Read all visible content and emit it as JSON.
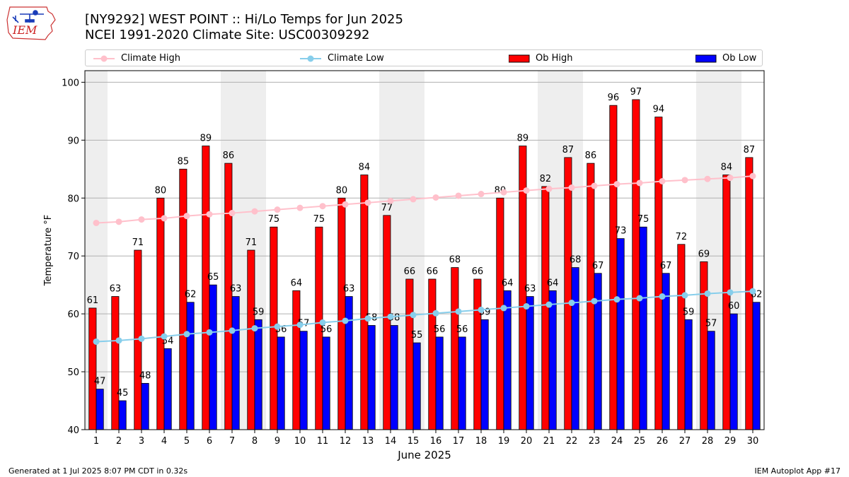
{
  "logo": {
    "text": "IEM"
  },
  "title": {
    "line1": "[NY9292] WEST POINT :: Hi/Lo Temps for Jun 2025",
    "line2": "NCEI 1991-2020 Climate Site: USC00309292"
  },
  "legend": [
    {
      "label": "Climate High",
      "kind": "line",
      "color": "#ffc0cb"
    },
    {
      "label": "Climate Low",
      "kind": "line",
      "color": "#87ceeb"
    },
    {
      "label": "Ob High",
      "kind": "bar",
      "color": "#ff0000"
    },
    {
      "label": "Ob Low",
      "kind": "bar",
      "color": "#0000ff"
    }
  ],
  "footer": {
    "left": "Generated at 1 Jul 2025 8:07 PM CDT in 0.32s",
    "right": "IEM Autoplot App #17"
  },
  "chart_data": {
    "type": "bar",
    "xlabel": "June 2025",
    "ylabel": "Temperature °F",
    "ylim": [
      40,
      102
    ],
    "yticks": [
      40,
      50,
      60,
      70,
      80,
      90,
      100
    ],
    "grid": true,
    "legend_position": "top",
    "weekend_shading_days": [
      1,
      7,
      8,
      14,
      15,
      21,
      22,
      28,
      29
    ],
    "categories": [
      "1",
      "2",
      "3",
      "4",
      "5",
      "6",
      "7",
      "8",
      "9",
      "10",
      "11",
      "12",
      "13",
      "14",
      "15",
      "16",
      "17",
      "18",
      "19",
      "20",
      "21",
      "22",
      "23",
      "24",
      "25",
      "26",
      "27",
      "28",
      "29",
      "30"
    ],
    "series": [
      {
        "name": "Ob High",
        "kind": "bar",
        "color": "#ff0000",
        "values": [
          61,
          63,
          71,
          80,
          85,
          89,
          86,
          71,
          75,
          64,
          75,
          80,
          84,
          77,
          66,
          66,
          68,
          66,
          80,
          89,
          82,
          87,
          86,
          96,
          97,
          94,
          72,
          69,
          84,
          87
        ]
      },
      {
        "name": "Ob Low",
        "kind": "bar",
        "color": "#0000ff",
        "values": [
          47,
          45,
          48,
          54,
          62,
          65,
          63,
          59,
          56,
          57,
          56,
          63,
          58,
          58,
          55,
          56,
          56,
          59,
          64,
          63,
          64,
          68,
          67,
          73,
          75,
          67,
          59,
          57,
          60,
          62
        ]
      },
      {
        "name": "Climate High",
        "kind": "line",
        "color": "#ffc0cb",
        "values": [
          75.7,
          75.9,
          76.3,
          76.5,
          76.9,
          77.2,
          77.4,
          77.7,
          78.0,
          78.3,
          78.6,
          78.9,
          79.2,
          79.5,
          79.8,
          80.1,
          80.4,
          80.7,
          81.0,
          81.3,
          81.6,
          81.8,
          82.1,
          82.4,
          82.6,
          82.9,
          83.1,
          83.3,
          83.5,
          83.8
        ]
      },
      {
        "name": "Climate Low",
        "kind": "line",
        "color": "#87ceeb",
        "values": [
          55.2,
          55.4,
          55.7,
          56.1,
          56.5,
          56.8,
          57.1,
          57.5,
          57.8,
          58.1,
          58.5,
          58.8,
          59.2,
          59.5,
          59.8,
          60.1,
          60.4,
          60.7,
          61.0,
          61.3,
          61.6,
          61.9,
          62.2,
          62.5,
          62.7,
          63.0,
          63.2,
          63.5,
          63.7,
          63.9
        ]
      }
    ]
  }
}
